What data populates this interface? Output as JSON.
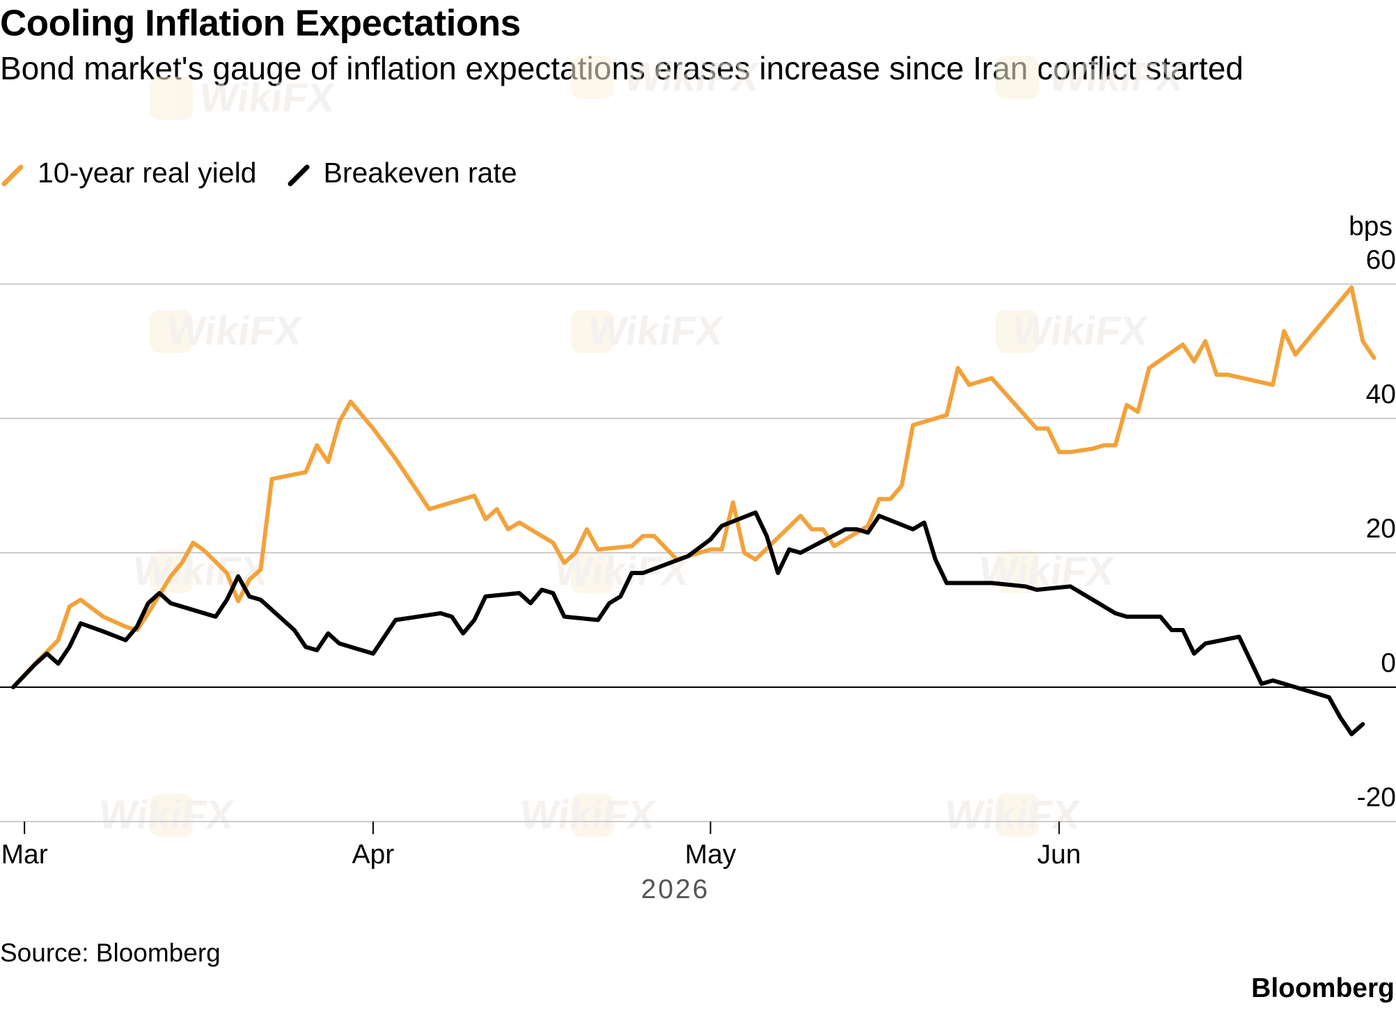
{
  "title": "Cooling Inflation Expectations",
  "subtitle": "Bond market's gauge of inflation expectations erases increase since Iran conflict started",
  "source": "Source: Bloomberg",
  "brand": "Bloomberg",
  "watermark": "WikiFX",
  "chart_data": {
    "type": "line",
    "title": "Cooling Inflation Expectations",
    "subtitle": "Bond market's gauge of inflation expectations erases increase since Iran conflict started",
    "xlabel": "2026",
    "ylabel": "bps",
    "y_unit": "bps",
    "ylim": [
      -20,
      60
    ],
    "yticks": [
      60,
      40,
      20,
      0,
      -20
    ],
    "xlim": [
      "2026-02-28",
      "2026-06-26"
    ],
    "xticks": [
      {
        "label": "Mar",
        "date": "2026-03-01"
      },
      {
        "label": "Apr",
        "date": "2026-04-01"
      },
      {
        "label": "May",
        "date": "2026-05-01"
      },
      {
        "label": "Jun",
        "date": "2026-06-01"
      }
    ],
    "grid": true,
    "legend_position": "top-left",
    "series": [
      {
        "name": "10-year real yield",
        "color": "#f2a23a",
        "points": [
          [
            "2026-02-28",
            0.0
          ],
          [
            "2026-03-02",
            3.6
          ],
          [
            "2026-03-04",
            7.0
          ],
          [
            "2026-03-05",
            12.0
          ],
          [
            "2026-03-06",
            13.0
          ],
          [
            "2026-03-08",
            10.5
          ],
          [
            "2026-03-10",
            9.0
          ],
          [
            "2026-03-11",
            8.5
          ],
          [
            "2026-03-12",
            11.0
          ],
          [
            "2026-03-14",
            16.5
          ],
          [
            "2026-03-15",
            18.5
          ],
          [
            "2026-03-16",
            21.5
          ],
          [
            "2026-03-17",
            20.3
          ],
          [
            "2026-03-19",
            17.0
          ],
          [
            "2026-03-20",
            12.8
          ],
          [
            "2026-03-21",
            16.0
          ],
          [
            "2026-03-22",
            17.5
          ],
          [
            "2026-03-23",
            31.0
          ],
          [
            "2026-03-26",
            32.0
          ],
          [
            "2026-03-27",
            36.0
          ],
          [
            "2026-03-28",
            33.5
          ],
          [
            "2026-03-29",
            39.5
          ],
          [
            "2026-03-30",
            42.5
          ],
          [
            "2026-04-01",
            38.5
          ],
          [
            "2026-04-03",
            34.0
          ],
          [
            "2026-04-05",
            29.0
          ],
          [
            "2026-04-06",
            26.5
          ],
          [
            "2026-04-10",
            28.5
          ],
          [
            "2026-04-11",
            25.0
          ],
          [
            "2026-04-12",
            26.5
          ],
          [
            "2026-04-13",
            23.5
          ],
          [
            "2026-04-14",
            24.5
          ],
          [
            "2026-04-17",
            21.5
          ],
          [
            "2026-04-18",
            18.5
          ],
          [
            "2026-04-19",
            20.0
          ],
          [
            "2026-04-20",
            23.5
          ],
          [
            "2026-04-21",
            20.5
          ],
          [
            "2026-04-24",
            21.0
          ],
          [
            "2026-04-25",
            22.5
          ],
          [
            "2026-04-26",
            22.5
          ],
          [
            "2026-04-28",
            19.0
          ],
          [
            "2026-05-01",
            20.5
          ],
          [
            "2026-05-02",
            20.5
          ],
          [
            "2026-05-03",
            27.5
          ],
          [
            "2026-05-04",
            20.0
          ],
          [
            "2026-05-05",
            19.0
          ],
          [
            "2026-05-09",
            25.5
          ],
          [
            "2026-05-10",
            23.5
          ],
          [
            "2026-05-11",
            23.5
          ],
          [
            "2026-05-12",
            21.0
          ],
          [
            "2026-05-15",
            24.0
          ],
          [
            "2026-05-16",
            28.0
          ],
          [
            "2026-05-17",
            28.0
          ],
          [
            "2026-05-18",
            30.0
          ],
          [
            "2026-05-19",
            39.0
          ],
          [
            "2026-05-22",
            40.5
          ],
          [
            "2026-05-23",
            47.5
          ],
          [
            "2026-05-24",
            45.0
          ],
          [
            "2026-05-26",
            46.0
          ],
          [
            "2026-05-30",
            38.5
          ],
          [
            "2026-05-31",
            38.5
          ],
          [
            "2026-06-01",
            35.0
          ],
          [
            "2026-06-02",
            35.0
          ],
          [
            "2026-06-04",
            35.5
          ],
          [
            "2026-06-05",
            36.0
          ],
          [
            "2026-06-06",
            36.0
          ],
          [
            "2026-06-07",
            42.0
          ],
          [
            "2026-06-08",
            41.0
          ],
          [
            "2026-06-09",
            47.5
          ],
          [
            "2026-06-12",
            51.0
          ],
          [
            "2026-06-13",
            48.5
          ],
          [
            "2026-06-14",
            51.5
          ],
          [
            "2026-06-15",
            46.5
          ],
          [
            "2026-06-16",
            46.5
          ],
          [
            "2026-06-20",
            45.0
          ],
          [
            "2026-06-21",
            53.0
          ],
          [
            "2026-06-22",
            49.5
          ],
          [
            "2026-06-27",
            59.5
          ],
          [
            "2026-06-28",
            51.5
          ],
          [
            "2026-06-29",
            49.0
          ]
        ]
      },
      {
        "name": "Breakeven rate",
        "color": "#000000",
        "points": [
          [
            "2026-02-28",
            0.0
          ],
          [
            "2026-03-02",
            3.5
          ],
          [
            "2026-03-03",
            5.0
          ],
          [
            "2026-03-04",
            3.5
          ],
          [
            "2026-03-05",
            6.0
          ],
          [
            "2026-03-06",
            9.5
          ],
          [
            "2026-03-08",
            8.3
          ],
          [
            "2026-03-10",
            7.0
          ],
          [
            "2026-03-11",
            9.0
          ],
          [
            "2026-03-12",
            12.5
          ],
          [
            "2026-03-13",
            14.0
          ],
          [
            "2026-03-14",
            12.5
          ],
          [
            "2026-03-18",
            10.5
          ],
          [
            "2026-03-19",
            13.0
          ],
          [
            "2026-03-20",
            16.5
          ],
          [
            "2026-03-21",
            13.5
          ],
          [
            "2026-03-22",
            13.0
          ],
          [
            "2026-03-25",
            8.5
          ],
          [
            "2026-03-26",
            6.0
          ],
          [
            "2026-03-27",
            5.5
          ],
          [
            "2026-03-28",
            8.0
          ],
          [
            "2026-03-29",
            6.5
          ],
          [
            "2026-04-01",
            5.0
          ],
          [
            "2026-04-03",
            10.0
          ],
          [
            "2026-04-05",
            10.5
          ],
          [
            "2026-04-07",
            11.0
          ],
          [
            "2026-04-08",
            10.5
          ],
          [
            "2026-04-09",
            8.0
          ],
          [
            "2026-04-10",
            10.0
          ],
          [
            "2026-04-11",
            13.5
          ],
          [
            "2026-04-14",
            14.0
          ],
          [
            "2026-04-15",
            12.5
          ],
          [
            "2026-04-16",
            14.5
          ],
          [
            "2026-04-17",
            14.0
          ],
          [
            "2026-04-18",
            10.5
          ],
          [
            "2026-04-21",
            10.0
          ],
          [
            "2026-04-22",
            12.5
          ],
          [
            "2026-04-23",
            13.5
          ],
          [
            "2026-04-24",
            17.0
          ],
          [
            "2026-04-25",
            17.0
          ],
          [
            "2026-04-29",
            19.5
          ],
          [
            "2026-05-01",
            22.0
          ],
          [
            "2026-05-02",
            24.0
          ],
          [
            "2026-05-05",
            26.0
          ],
          [
            "2026-05-06",
            22.5
          ],
          [
            "2026-05-07",
            17.0
          ],
          [
            "2026-05-08",
            20.5
          ],
          [
            "2026-05-09",
            20.0
          ],
          [
            "2026-05-13",
            23.5
          ],
          [
            "2026-05-14",
            23.5
          ],
          [
            "2026-05-15",
            23.0
          ],
          [
            "2026-05-16",
            25.5
          ],
          [
            "2026-05-19",
            23.5
          ],
          [
            "2026-05-20",
            24.5
          ],
          [
            "2026-05-21",
            19.0
          ],
          [
            "2026-05-22",
            15.5
          ],
          [
            "2026-05-26",
            15.5
          ],
          [
            "2026-05-29",
            15.0
          ],
          [
            "2026-05-30",
            14.5
          ],
          [
            "2026-06-02",
            15.0
          ],
          [
            "2026-06-04",
            13.0
          ],
          [
            "2026-06-06",
            11.0
          ],
          [
            "2026-06-07",
            10.5
          ],
          [
            "2026-06-10",
            10.5
          ],
          [
            "2026-06-11",
            8.5
          ],
          [
            "2026-06-12",
            8.5
          ],
          [
            "2026-06-13",
            5.0
          ],
          [
            "2026-06-14",
            6.5
          ],
          [
            "2026-06-17",
            7.5
          ],
          [
            "2026-06-19",
            0.5
          ],
          [
            "2026-06-20",
            1.0
          ],
          [
            "2026-06-25",
            -1.5
          ],
          [
            "2026-06-26",
            -4.5
          ],
          [
            "2026-06-27",
            -7.0
          ],
          [
            "2026-06-28",
            -5.5
          ]
        ]
      }
    ]
  }
}
